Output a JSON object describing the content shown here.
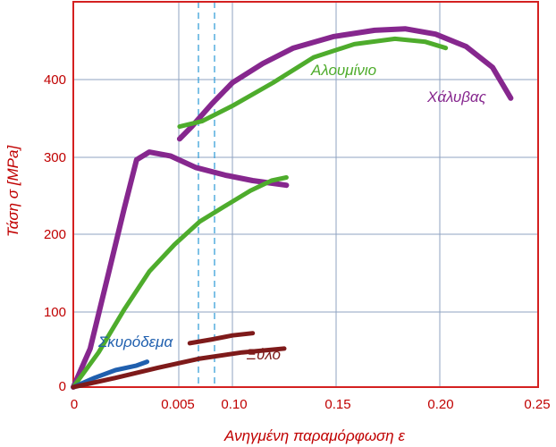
{
  "chart_data": {
    "type": "line",
    "title": "",
    "xlabel": "Ανηγμένη παραμόρφωση ε",
    "ylabel": "Τάση σ [MPa]",
    "x_ticks": [
      "0",
      "0.005",
      "0.10",
      "0.15",
      "0.20",
      "0.25"
    ],
    "y_ticks": [
      "0",
      "100",
      "200",
      "300",
      "400"
    ],
    "y_tick_values": [
      0,
      100,
      200,
      300,
      400
    ],
    "ylim": [
      0,
      500
    ],
    "grid": true,
    "axis_break": "dashed vertical lines between 0.005 and 0.10 (scale change)",
    "colors": {
      "axes": "#d42020",
      "grid": "#8fa3c2",
      "break": "#3aa0d8",
      "text": "#c00000"
    },
    "series": [
      {
        "name": "Χάλυβας",
        "color": "#86278e",
        "points": [
          {
            "x": 0.0,
            "y": 0
          },
          {
            "x": 0.0008,
            "y": 50
          },
          {
            "x": 0.0016,
            "y": 140
          },
          {
            "x": 0.0024,
            "y": 230
          },
          {
            "x": 0.003,
            "y": 295
          },
          {
            "x": 0.0036,
            "y": 305
          },
          {
            "x": 0.0046,
            "y": 300
          },
          {
            "x": 0.0058,
            "y": 285
          },
          {
            "x": 0.0072,
            "y": 275
          },
          {
            "x": 0.0085,
            "y": 268
          },
          {
            "x": 0.0101,
            "y": 262
          },
          {
            "x": 0.074,
            "y": 322
          },
          {
            "x": 0.08,
            "y": 338
          },
          {
            "x": 0.09,
            "y": 368
          },
          {
            "x": 0.1,
            "y": 395
          },
          {
            "x": 0.115,
            "y": 420
          },
          {
            "x": 0.13,
            "y": 440
          },
          {
            "x": 0.15,
            "y": 455
          },
          {
            "x": 0.17,
            "y": 463
          },
          {
            "x": 0.185,
            "y": 465
          },
          {
            "x": 0.2,
            "y": 458
          },
          {
            "x": 0.215,
            "y": 442
          },
          {
            "x": 0.228,
            "y": 415
          },
          {
            "x": 0.237,
            "y": 375
          }
        ]
      },
      {
        "name": "Αλουμίνιο",
        "color": "#4eac2c",
        "points": [
          {
            "x": 0.0,
            "y": 0
          },
          {
            "x": 0.0012,
            "y": 45
          },
          {
            "x": 0.0024,
            "y": 100
          },
          {
            "x": 0.0036,
            "y": 150
          },
          {
            "x": 0.0048,
            "y": 185
          },
          {
            "x": 0.006,
            "y": 215
          },
          {
            "x": 0.0072,
            "y": 235
          },
          {
            "x": 0.0084,
            "y": 255
          },
          {
            "x": 0.0094,
            "y": 268
          },
          {
            "x": 0.0101,
            "y": 272
          },
          {
            "x": 0.074,
            "y": 338
          },
          {
            "x": 0.085,
            "y": 345
          },
          {
            "x": 0.1,
            "y": 365
          },
          {
            "x": 0.12,
            "y": 395
          },
          {
            "x": 0.14,
            "y": 428
          },
          {
            "x": 0.16,
            "y": 445
          },
          {
            "x": 0.18,
            "y": 452
          },
          {
            "x": 0.195,
            "y": 448
          },
          {
            "x": 0.205,
            "y": 440
          }
        ]
      },
      {
        "name": "Σκυρόδεμα",
        "color": "#1f5fae",
        "points": [
          {
            "x": 0.0,
            "y": 0
          },
          {
            "x": 0.001,
            "y": 12
          },
          {
            "x": 0.002,
            "y": 22
          },
          {
            "x": 0.003,
            "y": 28
          },
          {
            "x": 0.0035,
            "y": 33
          }
        ]
      },
      {
        "name": "Ξύλο",
        "color": "#7e1a1a",
        "points": [
          {
            "x": 0.0,
            "y": 0
          },
          {
            "x": 0.002,
            "y": 12
          },
          {
            "x": 0.004,
            "y": 25
          },
          {
            "x": 0.006,
            "y": 37
          },
          {
            "x": 0.008,
            "y": 45
          },
          {
            "x": 0.01,
            "y": 50
          },
          {
            "x": 0.079,
            "y": 57
          },
          {
            "x": 0.09,
            "y": 62
          },
          {
            "x": 0.1,
            "y": 67
          },
          {
            "x": 0.11,
            "y": 70
          }
        ]
      }
    ]
  }
}
